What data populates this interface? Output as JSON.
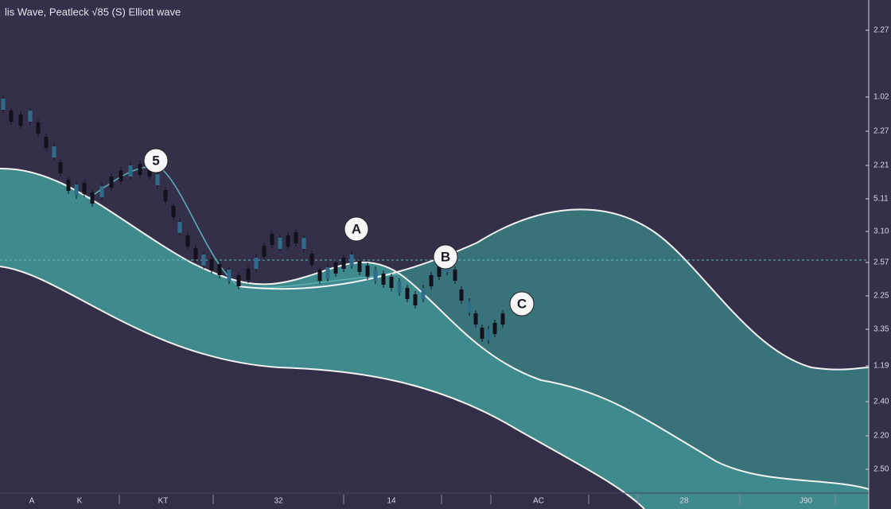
{
  "header": {
    "title": "lis Wave, Peatleck √85 (S) Elliott wave"
  },
  "wave_labels": [
    "5",
    "A",
    "B",
    "C"
  ],
  "y_axis_labels": [
    "2.27",
    "1.02",
    "2.27",
    "2.21",
    "5.11",
    "3.10",
    "2.57",
    "2.25",
    "3.35",
    "1.19",
    "2.40",
    "2.20",
    "2.50"
  ],
  "x_axis_labels": [
    "A",
    "K",
    "KT",
    "32",
    "14",
    "AC",
    "28",
    "J90"
  ]
}
